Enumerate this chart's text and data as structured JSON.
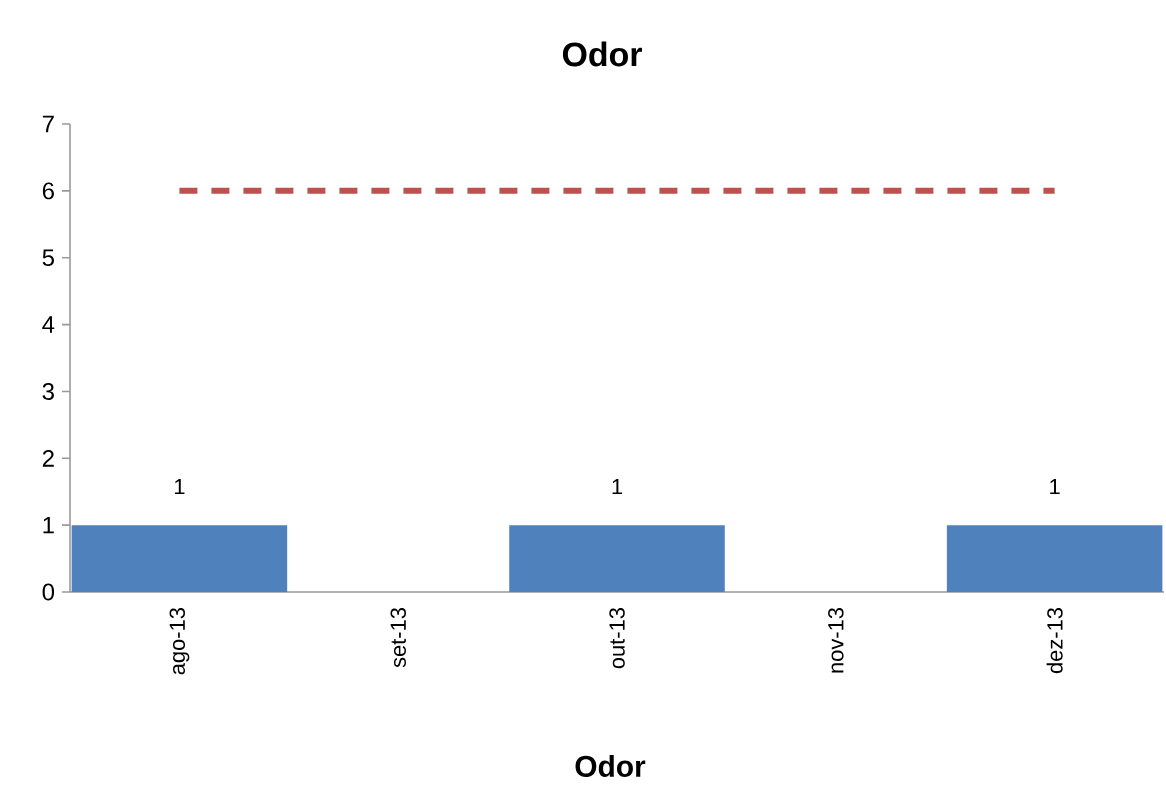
{
  "chart_data": {
    "type": "bar",
    "title": "Odor",
    "xlabel": "Odor",
    "categories": [
      "ago-13",
      "set-13",
      "out-13",
      "nov-13",
      "dez-13"
    ],
    "series": [
      {
        "color": "#4f81bd",
        "values": [
          1,
          null,
          1,
          null,
          1
        ],
        "value_labels": [
          "1",
          null,
          "1",
          null,
          "1"
        ]
      },
      {
        "type": "line",
        "color": "#c0504d",
        "line_style": "dashed",
        "values": [
          6,
          6,
          6,
          6,
          6
        ]
      }
    ],
    "ylim": [
      0,
      7
    ],
    "yticks": [
      0,
      1,
      2,
      3,
      4,
      5,
      6,
      7
    ]
  }
}
